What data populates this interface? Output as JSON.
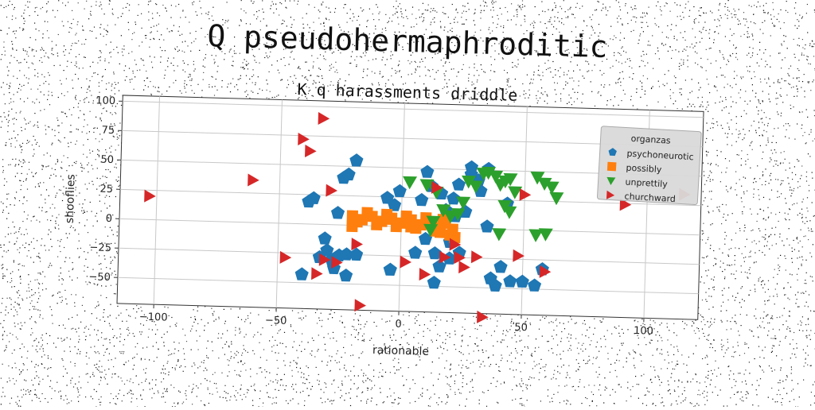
{
  "chart_data": {
    "type": "scatter",
    "title": "Q pseudohermaphroditic",
    "subtitle": "K q harassments driddle",
    "xlabel": "rationable",
    "ylabel": "shooflies",
    "xlim": [
      -115,
      122
    ],
    "ylim": [
      -72,
      105
    ],
    "xticks": [
      -100,
      -50,
      0,
      50,
      100
    ],
    "xtick_labels": [
      "−100",
      "−50",
      "0",
      "50",
      "100"
    ],
    "yticks": [
      -50,
      -25,
      0,
      25,
      50,
      75,
      100
    ],
    "ytick_labels": [
      "−50",
      "−25",
      "0",
      "25",
      "50",
      "75",
      "100"
    ],
    "grid": true,
    "legend": {
      "title": "organzas",
      "position": "top-right"
    },
    "series": [
      {
        "name": "psychoneurotic",
        "marker": "pentagon",
        "color": "#1f77b4",
        "points": [
          [
            -38,
            19
          ],
          [
            -36,
            22
          ],
          [
            -26,
            10
          ],
          [
            -24,
            40
          ],
          [
            -22,
            43
          ],
          [
            -19,
            55
          ],
          [
            -31,
            -12
          ],
          [
            -30,
            -22
          ],
          [
            -33,
            -28
          ],
          [
            -28,
            -30
          ],
          [
            -25,
            -26
          ],
          [
            -22,
            -25
          ],
          [
            -18,
            -25
          ],
          [
            -27,
            -37
          ],
          [
            -40,
            -43
          ],
          [
            -22,
            -43
          ],
          [
            -6,
            24
          ],
          [
            -3,
            18
          ],
          [
            -1,
            30
          ],
          [
            8,
            23
          ],
          [
            10,
            47
          ],
          [
            12,
            35
          ],
          [
            16,
            29
          ],
          [
            18,
            15
          ],
          [
            10,
            -10
          ],
          [
            14,
            -22
          ],
          [
            20,
            -26
          ],
          [
            24,
            -21
          ],
          [
            16,
            -33
          ],
          [
            -4,
            -37
          ],
          [
            6,
            -22
          ],
          [
            14,
            -47
          ],
          [
            22,
            10
          ],
          [
            26,
            14
          ],
          [
            21,
            25
          ],
          [
            23,
            37
          ],
          [
            28,
            46
          ],
          [
            28,
            52
          ],
          [
            31,
            41
          ],
          [
            32,
            32
          ],
          [
            35,
            51
          ],
          [
            37,
            -42
          ],
          [
            39,
            -48
          ],
          [
            35,
            2
          ],
          [
            41,
            -32
          ],
          [
            45,
            -44
          ],
          [
            50,
            -44
          ],
          [
            55,
            -47
          ],
          [
            58,
            -33
          ],
          [
            43,
            22
          ],
          [
            20,
            -12
          ]
        ]
      },
      {
        "name": "possibly",
        "marker": "square",
        "color": "#ff7f0e",
        "points": [
          [
            -20,
            8
          ],
          [
            -16,
            5
          ],
          [
            -12,
            8
          ],
          [
            -8,
            4
          ],
          [
            -4,
            7
          ],
          [
            0,
            3
          ],
          [
            4,
            6
          ],
          [
            8,
            2
          ],
          [
            12,
            5
          ],
          [
            15,
            0
          ],
          [
            18,
            4
          ],
          [
            21,
            -1
          ],
          [
            -18,
            3
          ],
          [
            -14,
            11
          ],
          [
            -10,
            1
          ],
          [
            -6,
            10
          ],
          [
            -2,
            0
          ],
          [
            2,
            9
          ],
          [
            6,
            -1
          ],
          [
            10,
            8
          ],
          [
            14,
            -3
          ],
          [
            17,
            7
          ],
          [
            20,
            -6
          ],
          [
            -20,
            -1
          ],
          [
            -6,
            6
          ],
          [
            4,
            0
          ],
          [
            16,
            -4
          ],
          [
            22,
            -8
          ]
        ]
      },
      {
        "name": "unprettily",
        "marker": "triangle_down",
        "color": "#2ca02c",
        "points": [
          [
            3,
            38
          ],
          [
            10,
            36
          ],
          [
            14,
            30
          ],
          [
            17,
            15
          ],
          [
            20,
            10
          ],
          [
            23,
            12
          ],
          [
            25,
            22
          ],
          [
            27,
            40
          ],
          [
            30,
            36
          ],
          [
            33,
            47
          ],
          [
            35,
            48
          ],
          [
            38,
            45
          ],
          [
            40,
            38
          ],
          [
            42,
            41
          ],
          [
            44,
            43
          ],
          [
            46,
            32
          ],
          [
            42,
            20
          ],
          [
            44,
            15
          ],
          [
            55,
            45
          ],
          [
            58,
            40
          ],
          [
            61,
            37
          ],
          [
            63,
            28
          ],
          [
            40,
            -4
          ],
          [
            55,
            -4
          ],
          [
            59,
            -3
          ],
          [
            12,
            -2
          ],
          [
            13,
            5
          ]
        ]
      },
      {
        "name": "churchward",
        "marker": "triangle_right",
        "color": "#d62728",
        "points": [
          [
            -103,
            20
          ],
          [
            -61,
            36
          ],
          [
            -41,
            72
          ],
          [
            -38,
            62
          ],
          [
            -33,
            90
          ],
          [
            -29,
            29
          ],
          [
            -47,
            -29
          ],
          [
            -34,
            -42
          ],
          [
            -26,
            -32
          ],
          [
            -18,
            -16
          ],
          [
            -16,
            -68
          ],
          [
            2,
            -30
          ],
          [
            10,
            -40
          ],
          [
            14,
            34
          ],
          [
            18,
            -25
          ],
          [
            24,
            -25
          ],
          [
            26,
            -33
          ],
          [
            31,
            -24
          ],
          [
            34,
            -75
          ],
          [
            48,
            -22
          ],
          [
            50,
            30
          ],
          [
            59,
            -35
          ],
          [
            91,
            24
          ],
          [
            115,
            34
          ],
          [
            22,
            -14
          ],
          [
            -31,
            -30
          ]
        ]
      }
    ]
  }
}
